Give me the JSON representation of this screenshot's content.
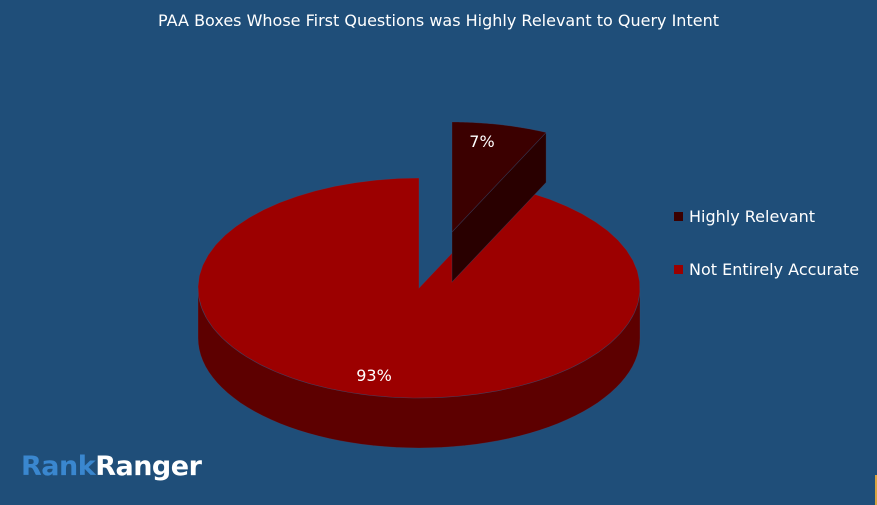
{
  "chart_data": {
    "type": "pie",
    "style": "3d-exploded",
    "title": "PAA Boxes Whose First Questions was Highly Relevant to Query Intent",
    "slices": [
      {
        "label": "Highly Relevant",
        "value": 7,
        "data_label": "7%",
        "color": "#3b0000",
        "exploded": true
      },
      {
        "label": "Not Entirely Accurate",
        "value": 93,
        "data_label": "93%",
        "color": "#9c0000",
        "exploded": false
      }
    ],
    "legend_position": "right"
  },
  "background_color": "#1f4e79",
  "logo": {
    "part1": "Rank",
    "part2": "Ranger"
  }
}
